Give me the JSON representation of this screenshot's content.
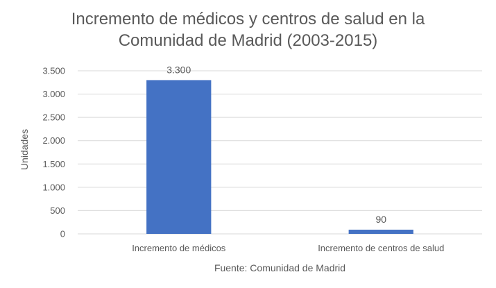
{
  "chart_data": {
    "type": "bar",
    "title_lines": [
      "Incremento de médicos y centros de salud en la",
      "Comunidad de Madrid (2003-2015)"
    ],
    "categories": [
      "Incremento de médicos",
      "Incremento de centros de salud"
    ],
    "values": [
      3300,
      90
    ],
    "data_labels": [
      "3.300",
      "90"
    ],
    "ylabel": "Unidades",
    "xlabel": "Fuente: Comunidad de Madrid",
    "ylim": [
      0,
      3500
    ],
    "yticks": [
      0,
      500,
      1000,
      1500,
      2000,
      2500,
      3000,
      3500
    ],
    "ytick_labels": [
      "0",
      "500",
      "1.000",
      "1.500",
      "2.000",
      "2.500",
      "3.000",
      "3.500"
    ],
    "grid": true,
    "legend": "none",
    "colors": {
      "bar": "#4472c4",
      "grid": "#d9d9d9",
      "text": "#595959"
    }
  }
}
